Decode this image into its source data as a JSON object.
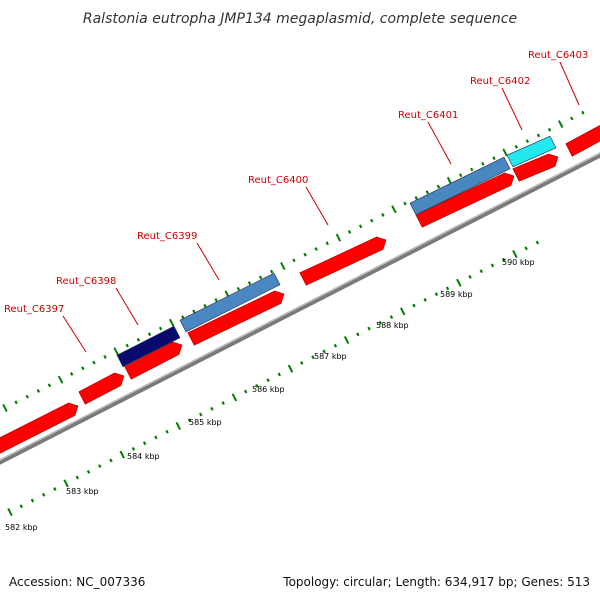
{
  "title": "Ralstonia eutropha JMP134 megaplasmid, complete sequence",
  "footer": {
    "accession": "Accession: NC_007336",
    "topology": "Topology: circular; Length: 634,917 bp; Genes: 513"
  },
  "colors": {
    "forward_gene": "#ff0000",
    "tick": "#008000",
    "label": "#cc0000",
    "backbone": "#8c8c8c",
    "cog_steelblue": "#4a86c0",
    "cog_navy": "#0a0a6e",
    "cog_cyan": "#22e8f0"
  },
  "gene_labels": [
    {
      "name": "Reut_C6397"
    },
    {
      "name": "Reut_C6398"
    },
    {
      "name": "Reut_C6399"
    },
    {
      "name": "Reut_C6400"
    },
    {
      "name": "Reut_C6401"
    },
    {
      "name": "Reut_C6402"
    },
    {
      "name": "Reut_C6403"
    }
  ],
  "scale_labels": [
    "582 kbp",
    "583 kbp",
    "584 kbp",
    "585 kbp",
    "586 kbp",
    "587 kbp",
    "588 kbp",
    "589 kbp",
    "590 kbp"
  ]
}
